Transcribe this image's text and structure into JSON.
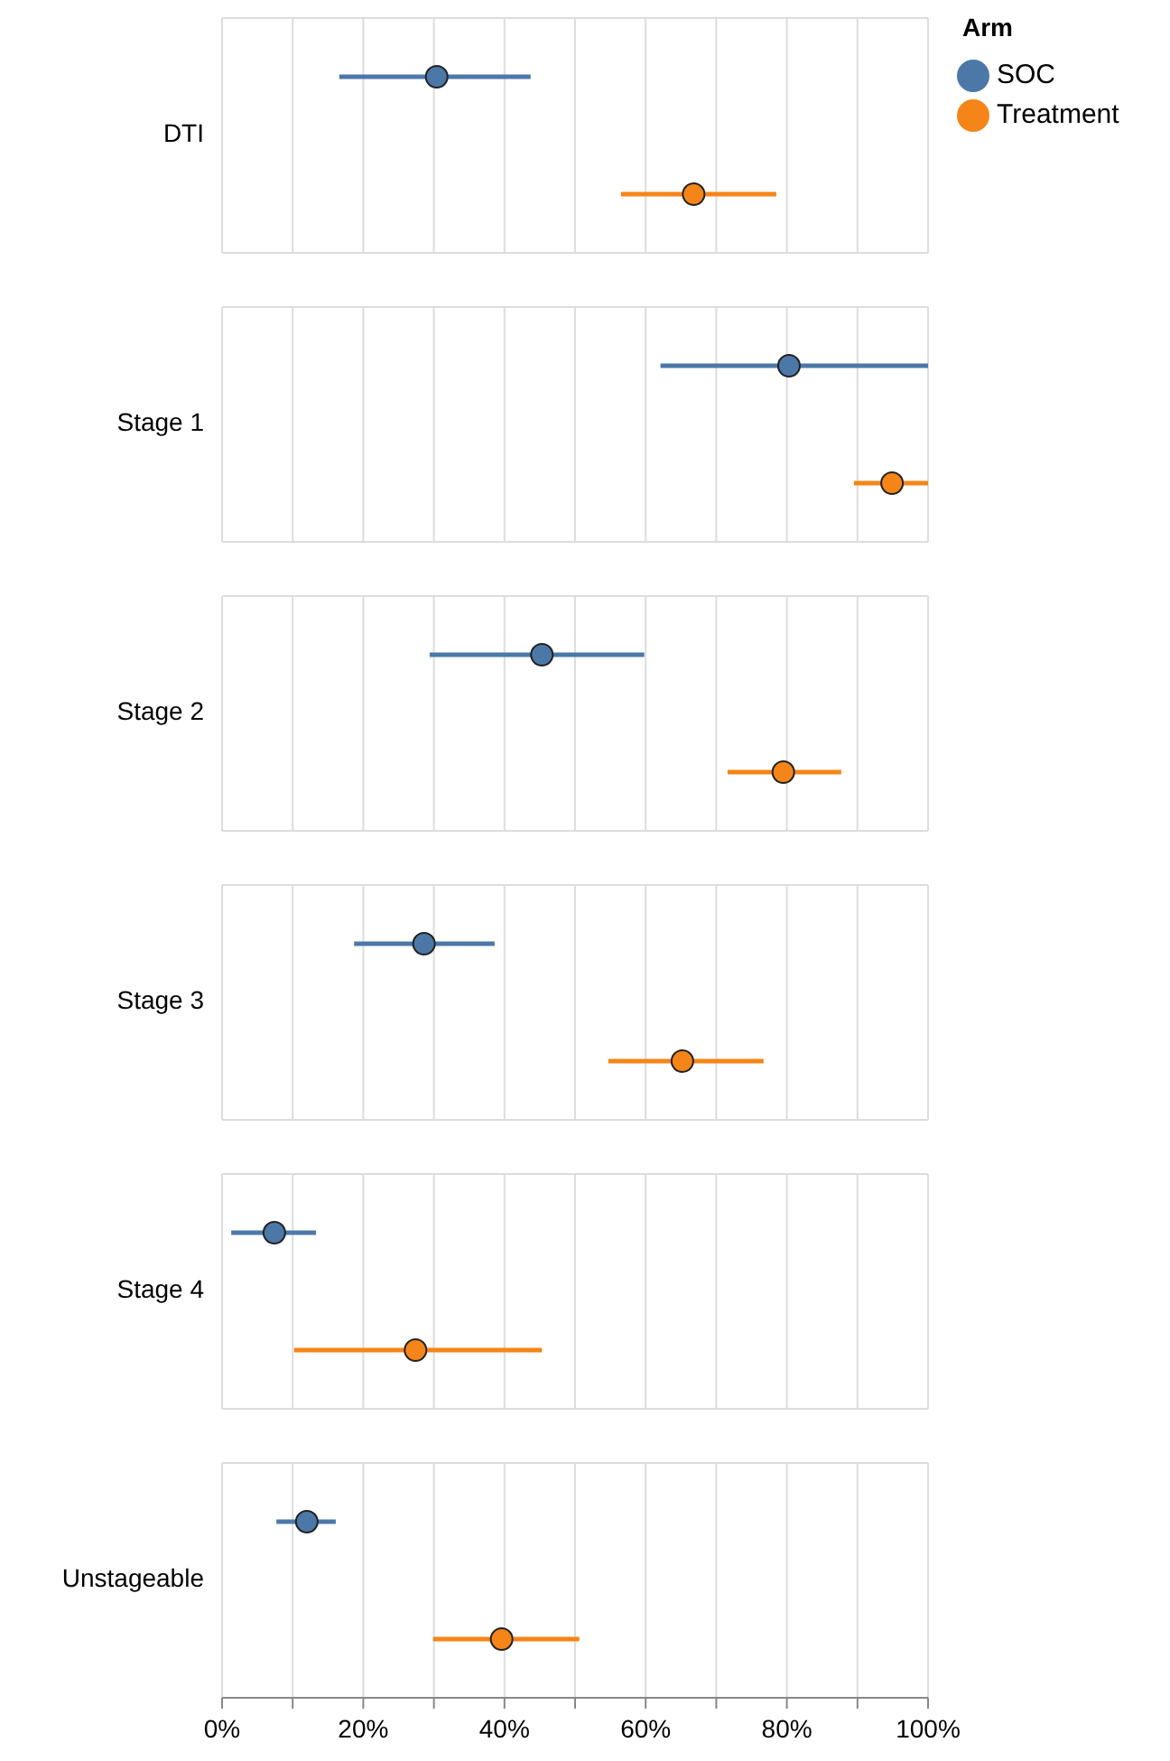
{
  "chart_data": {
    "type": "scatter",
    "orientation": "horizontal",
    "legend_title": "Arm",
    "legend": "top right",
    "categories": [
      "DTI",
      "Stage 1",
      "Stage 2",
      "Stage 3",
      "Stage 4",
      "Unstageable"
    ],
    "xlim": [
      0,
      100
    ],
    "xticks": [
      {
        "value": 0,
        "label": "0%"
      },
      {
        "value": 10,
        "label": null
      },
      {
        "value": 20,
        "label": "20%"
      },
      {
        "value": 30,
        "label": null
      },
      {
        "value": 40,
        "label": "40%"
      },
      {
        "value": 50,
        "label": null
      },
      {
        "value": 60,
        "label": "60%"
      },
      {
        "value": 70,
        "label": null
      },
      {
        "value": 80,
        "label": "80%"
      },
      {
        "value": 90,
        "label": null
      },
      {
        "value": 100,
        "label": "100%"
      }
    ],
    "grid": "x",
    "marker": "circle",
    "series": [
      {
        "name": "SOC",
        "color": "#4c78a8",
        "values": [
          30.4,
          80.3,
          45.3,
          28.6,
          7.4,
          12.0
        ],
        "errors": [
          [
            16.6,
            43.7
          ],
          [
            62.1,
            100
          ],
          [
            29.4,
            59.8
          ],
          [
            18.7,
            38.6
          ],
          [
            1.3,
            13.3
          ],
          [
            7.7,
            16.1
          ]
        ]
      },
      {
        "name": "Treatment",
        "color": "#f58518",
        "values": [
          66.8,
          94.9,
          79.5,
          65.2,
          27.4,
          39.6
        ],
        "errors": [
          [
            56.5,
            78.5
          ],
          [
            89.5,
            100
          ],
          [
            71.6,
            87.7
          ],
          [
            54.7,
            76.7
          ],
          [
            10.2,
            45.3
          ],
          [
            29.9,
            50.6
          ]
        ]
      }
    ]
  }
}
